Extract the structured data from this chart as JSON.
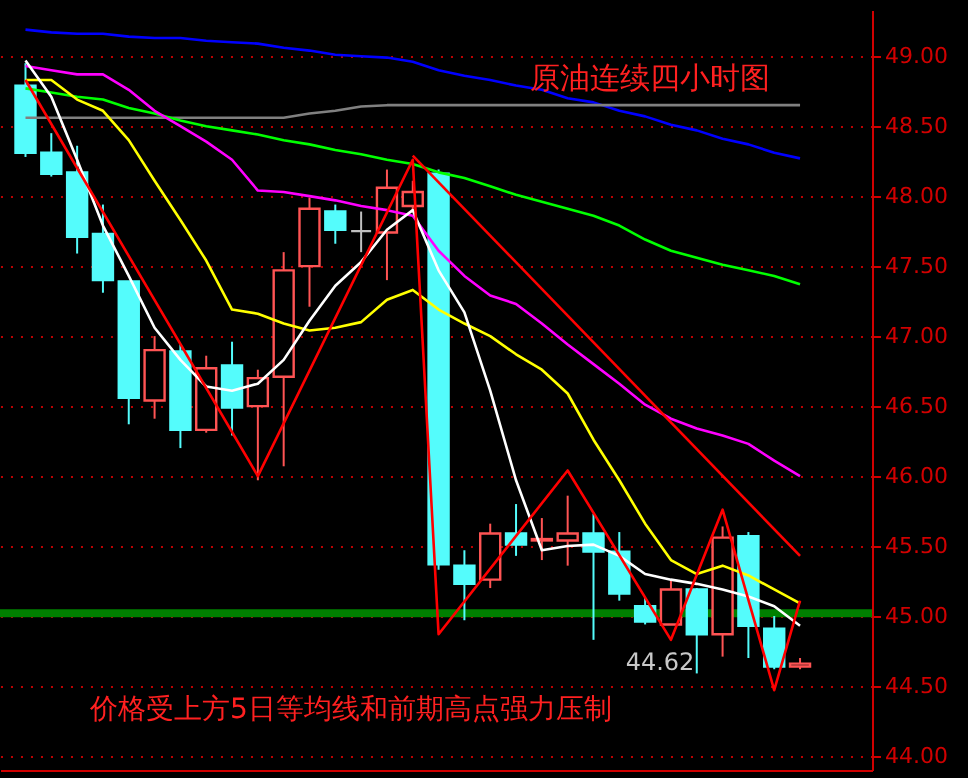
{
  "chart_data": {
    "type": "candlestick",
    "title": "原油连续四小时图",
    "categories": [
      null,
      null,
      null,
      null,
      null,
      null,
      null,
      null,
      null,
      null,
      null,
      null,
      null,
      null,
      null,
      null,
      null,
      null,
      null,
      null,
      null,
      null,
      null,
      null,
      null,
      null,
      null,
      null,
      null,
      null,
      null
    ],
    "ohlc": [
      [
        48.79,
        48.95,
        48.28,
        48.31
      ],
      [
        48.31,
        48.45,
        48.14,
        48.16
      ],
      [
        48.17,
        48.36,
        47.59,
        47.71
      ],
      [
        47.73,
        47.94,
        47.31,
        47.4
      ],
      [
        47.39,
        47.39,
        46.37,
        46.56
      ],
      [
        46.54,
        47.0,
        46.41,
        46.9
      ],
      [
        46.89,
        46.94,
        46.2,
        46.33
      ],
      [
        46.33,
        46.86,
        46.31,
        46.77
      ],
      [
        46.79,
        46.96,
        46.29,
        46.49
      ],
      [
        46.5,
        46.76,
        45.97,
        46.7
      ],
      [
        46.71,
        47.6,
        46.07,
        47.47
      ],
      [
        47.5,
        47.99,
        47.21,
        47.91
      ],
      [
        47.89,
        47.94,
        47.66,
        47.76
      ],
      [
        47.75,
        47.89,
        47.6,
        47.75
      ],
      [
        47.74,
        48.19,
        47.4,
        48.06
      ],
      [
        47.93,
        48.11,
        47.9,
        48.03
      ],
      [
        48.16,
        48.19,
        45.33,
        45.37
      ],
      [
        45.36,
        45.47,
        44.97,
        45.23
      ],
      [
        45.26,
        45.66,
        45.2,
        45.59
      ],
      [
        45.59,
        45.8,
        45.43,
        45.51
      ],
      [
        45.54,
        45.7,
        45.4,
        45.55
      ],
      [
        45.54,
        45.86,
        45.36,
        45.59
      ],
      [
        45.59,
        45.73,
        44.83,
        45.46
      ],
      [
        45.46,
        45.6,
        45.11,
        45.16
      ],
      [
        45.07,
        45.13,
        44.94,
        44.96
      ],
      [
        44.94,
        45.26,
        44.94,
        45.19
      ],
      [
        45.19,
        45.2,
        44.59,
        44.87
      ],
      [
        44.87,
        45.64,
        44.71,
        45.56
      ],
      [
        45.57,
        45.6,
        44.7,
        44.93
      ],
      [
        44.91,
        45.0,
        44.62,
        44.64
      ],
      [
        44.64,
        44.7,
        44.62,
        44.66
      ]
    ],
    "colors": [
      "#54fcfc",
      "#54fcfc",
      "#54fcfc",
      "#54fcfc",
      "#54fcfc",
      "#ff5454",
      "#54fcfc",
      "#ff5454",
      "#54fcfc",
      "#ff5454",
      "#ff5454",
      "#ff5454",
      "#54fcfc",
      "#c0c0c0",
      "#ff5454",
      "#ff5454",
      "#54fcfc",
      "#54fcfc",
      "#ff5454",
      "#54fcfc",
      "#ff5454",
      "#ff5454",
      "#54fcfc",
      "#54fcfc",
      "#54fcfc",
      "#ff5454",
      "#54fcfc",
      "#ff5454",
      "#54fcfc",
      "#54fcfc",
      "#ff5454"
    ],
    "series": [
      {
        "type": "line",
        "color": "#0000ff",
        "values": [
          49.19,
          49.17,
          49.16,
          49.16,
          49.14,
          49.13,
          49.13,
          49.11,
          49.1,
          49.09,
          49.06,
          49.04,
          49.01,
          49.0,
          48.99,
          48.96,
          48.9,
          48.86,
          48.83,
          48.79,
          48.76,
          48.7,
          48.67,
          48.61,
          48.57,
          48.51,
          48.47,
          48.41,
          48.37,
          48.31,
          48.27
        ]
      },
      {
        "type": "line",
        "color": "#808080",
        "values": [
          48.56,
          48.56,
          48.56,
          48.56,
          48.56,
          48.56,
          48.56,
          48.56,
          48.56,
          48.56,
          48.56,
          48.59,
          48.61,
          48.64,
          48.65,
          48.65,
          48.65,
          48.65,
          48.65,
          48.65,
          48.65,
          48.65,
          48.65,
          48.65,
          48.65,
          48.65,
          48.65,
          48.65,
          48.65,
          48.65,
          48.65
        ]
      },
      {
        "type": "line",
        "color": "#00ff00",
        "values": [
          48.77,
          48.74,
          48.71,
          48.69,
          48.63,
          48.59,
          48.54,
          48.5,
          48.47,
          48.44,
          48.4,
          48.37,
          48.33,
          48.3,
          48.26,
          48.23,
          48.17,
          48.13,
          48.07,
          48.01,
          47.96,
          47.91,
          47.86,
          47.79,
          47.69,
          47.61,
          47.56,
          47.51,
          47.47,
          47.43,
          47.37
        ]
      },
      {
        "type": "line",
        "color": "#ff00ff",
        "values": [
          48.93,
          48.9,
          48.87,
          48.87,
          48.76,
          48.61,
          48.5,
          48.39,
          48.26,
          48.04,
          48.03,
          48.0,
          47.97,
          47.93,
          47.9,
          47.86,
          47.61,
          47.43,
          47.29,
          47.23,
          47.09,
          46.94,
          46.8,
          46.66,
          46.51,
          46.41,
          46.34,
          46.29,
          46.23,
          46.11,
          46.0
        ]
      },
      {
        "type": "line",
        "color": "#ffff00",
        "values": [
          48.83,
          48.83,
          48.69,
          48.61,
          48.4,
          48.11,
          47.83,
          47.54,
          47.19,
          47.16,
          47.09,
          47.04,
          47.06,
          47.1,
          47.26,
          47.33,
          47.19,
          47.09,
          47.0,
          46.87,
          46.76,
          46.59,
          46.26,
          45.97,
          45.66,
          45.4,
          45.3,
          45.36,
          45.29,
          45.19,
          45.09
        ]
      },
      {
        "type": "line",
        "color": "#ffffff",
        "values": [
          48.97,
          48.71,
          48.26,
          47.79,
          47.43,
          47.06,
          46.83,
          46.64,
          46.61,
          46.66,
          46.83,
          47.11,
          47.36,
          47.53,
          47.76,
          47.9,
          47.47,
          47.17,
          46.61,
          45.97,
          45.47,
          45.5,
          45.51,
          45.43,
          45.3,
          45.26,
          45.23,
          45.19,
          45.14,
          45.07,
          44.93
        ]
      },
      {
        "type": "line",
        "color": "#ff0000",
        "values": [
          48.83,
          null,
          null,
          null,
          null,
          null,
          null,
          null,
          null,
          46.0,
          null,
          null,
          null,
          null,
          null,
          48.26,
          44.87,
          null,
          null,
          null,
          null,
          46.04,
          null,
          null,
          null,
          44.83,
          null,
          45.76,
          null,
          44.47,
          45.11
        ]
      },
      {
        "type": "line",
        "color": "#ff0000",
        "values": [
          null,
          null,
          null,
          null,
          null,
          null,
          null,
          null,
          null,
          null,
          null,
          null,
          null,
          null,
          null,
          48.29,
          null,
          null,
          null,
          null,
          null,
          null,
          null,
          null,
          null,
          null,
          null,
          null,
          null,
          null,
          45.43
        ]
      }
    ],
    "ylim": [
      43.9,
      49.33
    ],
    "yticks": [
      {
        "value": 44,
        "label": "44.00"
      },
      {
        "value": 44.5,
        "label": "44.50"
      },
      {
        "value": 45,
        "label": "45.00"
      },
      {
        "value": 45.5,
        "label": "45.50"
      },
      {
        "value": 46,
        "label": "46.00"
      },
      {
        "value": 46.5,
        "label": "46.50"
      },
      {
        "value": 47,
        "label": "47.00"
      },
      {
        "value": 47.5,
        "label": "47.50"
      },
      {
        "value": 48,
        "label": "48.00"
      },
      {
        "value": 48.5,
        "label": "48.50"
      },
      {
        "value": 49,
        "label": "49.00"
      }
    ],
    "grid": "y",
    "ref_lines": [
      {
        "axis": "y",
        "value": 45.02,
        "color": "#008000"
      }
    ],
    "annotations": [
      "44.62",
      "价格受上方5日等均线和前期高点强力压制"
    ]
  }
}
